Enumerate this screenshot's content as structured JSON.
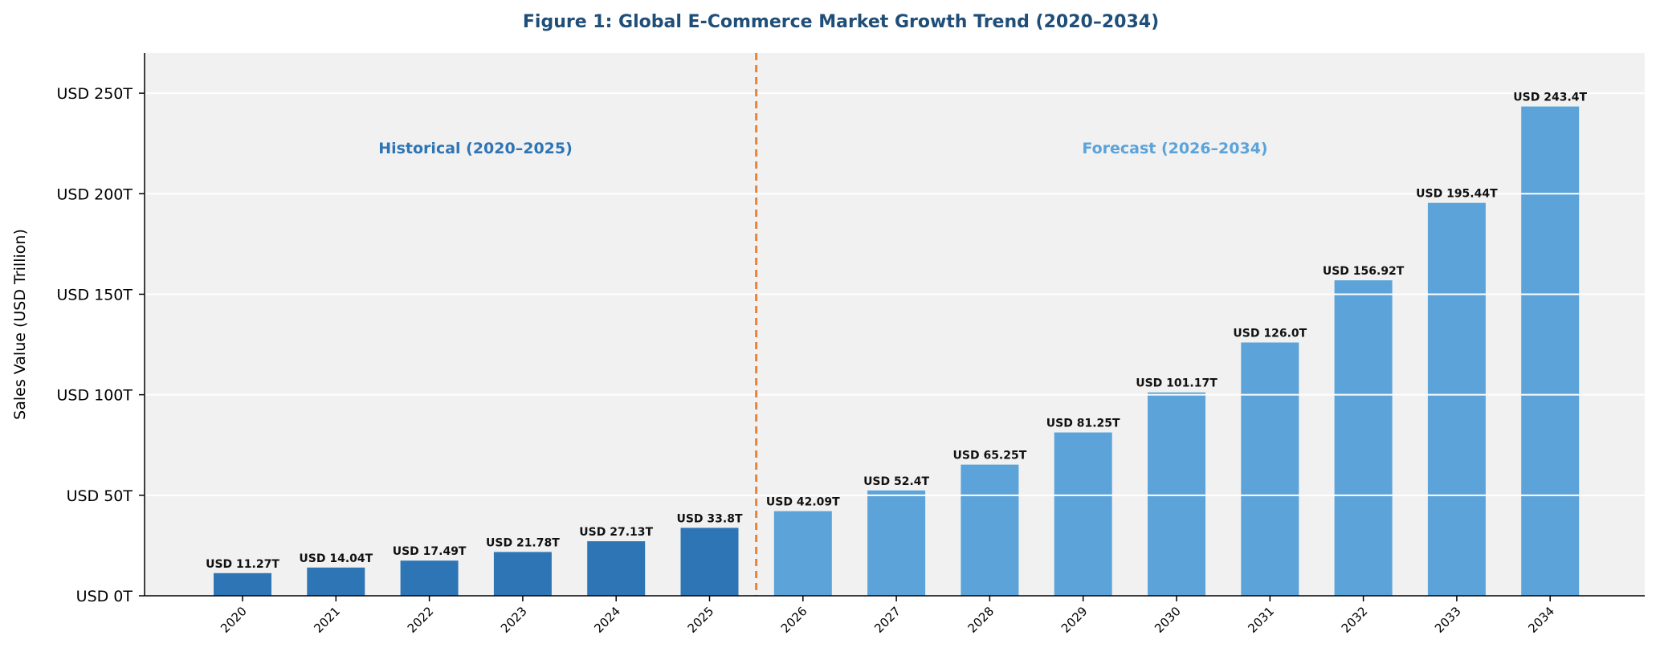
{
  "chart_data": {
    "type": "bar",
    "title": "Figure 1: Global E-Commerce Market Growth Trend (2020–2034)",
    "xlabel": "",
    "ylabel": "Sales Value (USD Trillion)",
    "ylim": [
      0,
      270
    ],
    "yticks": [
      0,
      50,
      100,
      150,
      200,
      250
    ],
    "ytick_labels": [
      "USD 0T",
      "USD 50T",
      "USD 100T",
      "USD 150T",
      "USD 200T",
      "USD 250T"
    ],
    "grid": "horizontal",
    "categories": [
      "2020",
      "2021",
      "2022",
      "2023",
      "2024",
      "2025",
      "2026",
      "2027",
      "2028",
      "2029",
      "2030",
      "2031",
      "2032",
      "2033",
      "2034"
    ],
    "values": [
      11.27,
      14.04,
      17.49,
      21.78,
      27.13,
      33.8,
      42.09,
      52.4,
      65.25,
      81.25,
      101.17,
      126.0,
      156.92,
      195.44,
      243.4
    ],
    "data_labels": [
      "USD 11.27T",
      "USD 14.04T",
      "USD 17.49T",
      "USD 21.78T",
      "USD 27.13T",
      "USD 33.8T",
      "USD 42.09T",
      "USD 52.4T",
      "USD 65.25T",
      "USD 81.25T",
      "USD 101.17T",
      "USD 126.0T",
      "USD 156.92T",
      "USD 195.44T",
      "USD 243.4T"
    ],
    "historical_count": 6,
    "annotations": {
      "historical": "Historical (2020–2025)",
      "forecast": "Forecast (2026–2034)"
    },
    "divider": "between 2025 and 2026 (dashed)",
    "colors": {
      "title": "#1f4e79",
      "historical_bar": "#2e75b6",
      "forecast_bar": "#5ba3d9",
      "historical_text": "#2e75b6",
      "forecast_text": "#5ba3d9",
      "divider": "#e8833a",
      "plot_bg": "#f1f1f1",
      "grid": "#ffffff"
    }
  }
}
